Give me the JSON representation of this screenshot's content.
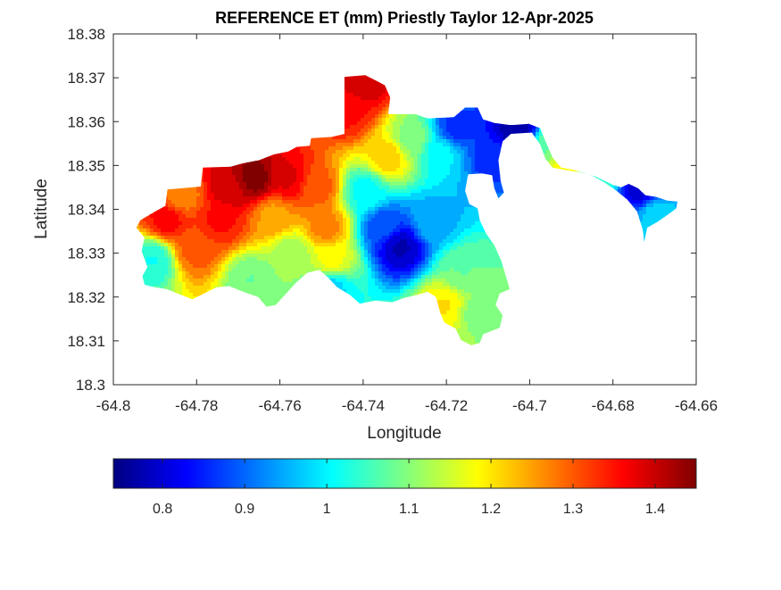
{
  "chart_data": {
    "type": "heatmap",
    "title": "REFERENCE ET (mm) Priestly Taylor 12-Apr-2025",
    "xlabel": "Longitude",
    "ylabel": "Latitude",
    "xlim": [
      -64.8,
      -64.66
    ],
    "ylim": [
      18.3,
      18.38
    ],
    "xticks": [
      -64.8,
      -64.78,
      -64.76,
      -64.74,
      -64.72,
      -64.7,
      -64.68,
      -64.66
    ],
    "xtick_labels": [
      "-64.8",
      "-64.78",
      "-64.76",
      "-64.74",
      "-64.72",
      "-64.7",
      "-64.68",
      "-64.66"
    ],
    "yticks": [
      18.3,
      18.31,
      18.32,
      18.33,
      18.34,
      18.35,
      18.36,
      18.37,
      18.38
    ],
    "ytick_labels": [
      "18.3",
      "18.31",
      "18.32",
      "18.33",
      "18.34",
      "18.35",
      "18.36",
      "18.37",
      "18.38"
    ],
    "grid": false,
    "colormap": "jet",
    "colorbar": {
      "placement": "bottom",
      "range": [
        0.74,
        1.45
      ],
      "ticks": [
        0.8,
        0.9,
        1.0,
        1.1,
        1.2,
        1.3,
        1.4
      ],
      "tick_labels": [
        "0.8",
        "0.9",
        "1",
        "1.1",
        "1.2",
        "1.3",
        "1.4"
      ]
    },
    "island_outline": [
      [
        -64.7935,
        18.3375
      ],
      [
        -64.7905,
        18.3392
      ],
      [
        -64.7875,
        18.3408
      ],
      [
        -64.787,
        18.3445
      ],
      [
        -64.7835,
        18.3448
      ],
      [
        -64.779,
        18.3452
      ],
      [
        -64.7785,
        18.3495
      ],
      [
        -64.7718,
        18.3497
      ],
      [
        -64.7688,
        18.3505
      ],
      [
        -64.765,
        18.3512
      ],
      [
        -64.7615,
        18.3525
      ],
      [
        -64.758,
        18.3532
      ],
      [
        -64.756,
        18.3542
      ],
      [
        -64.7528,
        18.3545
      ],
      [
        -64.7525,
        18.3562
      ],
      [
        -64.7475,
        18.3565
      ],
      [
        -64.7445,
        18.3572
      ],
      [
        -64.7445,
        18.3702
      ],
      [
        -64.7395,
        18.3706
      ],
      [
        -64.737,
        18.3694
      ],
      [
        -64.7348,
        18.3683
      ],
      [
        -64.7335,
        18.3655
      ],
      [
        -64.734,
        18.3617
      ],
      [
        -64.7275,
        18.3617
      ],
      [
        -64.7245,
        18.3607
      ],
      [
        -64.7182,
        18.361
      ],
      [
        -64.7155,
        18.3632
      ],
      [
        -64.7125,
        18.3632
      ],
      [
        -64.7112,
        18.3605
      ],
      [
        -64.7085,
        18.3597
      ],
      [
        -64.7045,
        18.3592
      ],
      [
        -64.7002,
        18.3595
      ],
      [
        -64.6975,
        18.3585
      ],
      [
        -64.6962,
        18.3555
      ],
      [
        -64.6945,
        18.3518
      ],
      [
        -64.6925,
        18.3495
      ],
      [
        -64.6895,
        18.349
      ],
      [
        -64.6868,
        18.3482
      ],
      [
        -64.6842,
        18.3475
      ],
      [
        -64.682,
        18.3465
      ],
      [
        -64.6798,
        18.3455
      ],
      [
        -64.678,
        18.345
      ],
      [
        -64.6762,
        18.3458
      ],
      [
        -64.674,
        18.3448
      ],
      [
        -64.6722,
        18.3432
      ],
      [
        -64.6695,
        18.3428
      ],
      [
        -64.667,
        18.342
      ],
      [
        -64.6645,
        18.3418
      ],
      [
        -64.6648,
        18.3402
      ],
      [
        -64.6668,
        18.3388
      ],
      [
        -64.6692,
        18.3372
      ],
      [
        -64.6718,
        18.3358
      ],
      [
        -64.6725,
        18.3325
      ],
      [
        -64.6728,
        18.3352
      ],
      [
        -64.6742,
        18.3395
      ],
      [
        -64.6765,
        18.3422
      ],
      [
        -64.6795,
        18.3445
      ],
      [
        -64.6822,
        18.3462
      ],
      [
        -64.6852,
        18.3478
      ],
      [
        -64.6882,
        18.3485
      ],
      [
        -64.6915,
        18.349
      ],
      [
        -64.6945,
        18.3495
      ],
      [
        -64.6962,
        18.3515
      ],
      [
        -64.6975,
        18.3548
      ],
      [
        -64.6995,
        18.3575
      ],
      [
        -64.7045,
        18.3572
      ],
      [
        -64.7065,
        18.3555
      ],
      [
        -64.7075,
        18.3512
      ],
      [
        -64.707,
        18.3465
      ],
      [
        -64.7062,
        18.3438
      ],
      [
        -64.7075,
        18.3425
      ],
      [
        -64.7085,
        18.3448
      ],
      [
        -64.709,
        18.3478
      ],
      [
        -64.7115,
        18.3482
      ],
      [
        -64.7148,
        18.348
      ],
      [
        -64.7155,
        18.3442
      ],
      [
        -64.7145,
        18.3412
      ],
      [
        -64.7125,
        18.3402
      ],
      [
        -64.712,
        18.3375
      ],
      [
        -64.7105,
        18.3345
      ],
      [
        -64.7085,
        18.3318
      ],
      [
        -64.7068,
        18.3282
      ],
      [
        -64.7048,
        18.3218
      ],
      [
        -64.7072,
        18.3208
      ],
      [
        -64.7082,
        18.3182
      ],
      [
        -64.7065,
        18.3158
      ],
      [
        -64.7072,
        18.313
      ],
      [
        -64.7112,
        18.3115
      ],
      [
        -64.712,
        18.3095
      ],
      [
        -64.714,
        18.309
      ],
      [
        -64.7165,
        18.3102
      ],
      [
        -64.7178,
        18.3128
      ],
      [
        -64.7205,
        18.3142
      ],
      [
        -64.7215,
        18.3165
      ],
      [
        -64.7225,
        18.32
      ],
      [
        -64.7245,
        18.3212
      ],
      [
        -64.727,
        18.3205
      ],
      [
        -64.7302,
        18.3198
      ],
      [
        -64.733,
        18.3188
      ],
      [
        -64.737,
        18.3192
      ],
      [
        -64.7408,
        18.3185
      ],
      [
        -64.7432,
        18.3205
      ],
      [
        -64.7462,
        18.3222
      ],
      [
        -64.7485,
        18.3245
      ],
      [
        -64.7505,
        18.3262
      ],
      [
        -64.7535,
        18.3255
      ],
      [
        -64.7562,
        18.3232
      ],
      [
        -64.7585,
        18.3208
      ],
      [
        -64.761,
        18.3182
      ],
      [
        -64.7632,
        18.3178
      ],
      [
        -64.7652,
        18.32
      ],
      [
        -64.7688,
        18.3212
      ],
      [
        -64.7722,
        18.3225
      ],
      [
        -64.7752,
        18.3222
      ],
      [
        -64.7782,
        18.3208
      ],
      [
        -64.781,
        18.3195
      ],
      [
        -64.7838,
        18.3205
      ],
      [
        -64.7872,
        18.3218
      ],
      [
        -64.79,
        18.3222
      ],
      [
        -64.7925,
        18.3228
      ],
      [
        -64.793,
        18.3248
      ],
      [
        -64.7918,
        18.3268
      ],
      [
        -64.7932,
        18.3305
      ],
      [
        -64.7925,
        18.3335
      ],
      [
        -64.7945,
        18.3358
      ]
    ],
    "value_sources": [
      {
        "x": -64.766,
        "y": 18.347,
        "value": 1.45
      },
      {
        "x": -64.772,
        "y": 18.345,
        "value": 1.4
      },
      {
        "x": -64.758,
        "y": 18.347,
        "value": 1.38
      },
      {
        "x": -64.7745,
        "y": 18.3375,
        "value": 1.35
      },
      {
        "x": -64.787,
        "y": 18.3375,
        "value": 1.36
      },
      {
        "x": -64.7805,
        "y": 18.331,
        "value": 1.3
      },
      {
        "x": -64.749,
        "y": 18.336,
        "value": 1.27
      },
      {
        "x": -64.7435,
        "y": 18.362,
        "value": 1.35
      },
      {
        "x": -64.7395,
        "y": 18.369,
        "value": 1.4
      },
      {
        "x": -64.7835,
        "y": 18.343,
        "value": 1.27
      },
      {
        "x": -64.734,
        "y": 18.352,
        "value": 1.22
      },
      {
        "x": -64.757,
        "y": 18.33,
        "value": 1.12
      },
      {
        "x": -64.7475,
        "y": 18.328,
        "value": 1.18
      },
      {
        "x": -64.7905,
        "y": 18.3285,
        "value": 1.02
      },
      {
        "x": -64.767,
        "y": 18.324,
        "value": 1.08
      },
      {
        "x": -64.7475,
        "y": 18.3225,
        "value": 0.98
      },
      {
        "x": -64.7395,
        "y": 18.344,
        "value": 1.01
      },
      {
        "x": -64.731,
        "y": 18.3315,
        "value": 0.78
      },
      {
        "x": -64.735,
        "y": 18.336,
        "value": 0.88
      },
      {
        "x": -64.7235,
        "y": 18.337,
        "value": 0.95
      },
      {
        "x": -64.7175,
        "y": 18.358,
        "value": 0.86
      },
      {
        "x": -64.721,
        "y": 18.353,
        "value": 1.0
      },
      {
        "x": -64.7285,
        "y": 18.356,
        "value": 1.1
      },
      {
        "x": -64.716,
        "y": 18.326,
        "value": 1.08
      },
      {
        "x": -64.7125,
        "y": 18.3165,
        "value": 1.1
      },
      {
        "x": -64.7205,
        "y": 18.318,
        "value": 1.2
      },
      {
        "x": -64.703,
        "y": 18.358,
        "value": 0.76
      },
      {
        "x": -64.7085,
        "y": 18.352,
        "value": 0.85
      },
      {
        "x": -64.695,
        "y": 18.3545,
        "value": 1.08
      },
      {
        "x": -64.692,
        "y": 18.3495,
        "value": 1.18
      },
      {
        "x": -64.684,
        "y": 18.3475,
        "value": 1.05
      },
      {
        "x": -64.673,
        "y": 18.3445,
        "value": 0.8
      },
      {
        "x": -64.6695,
        "y": 18.339,
        "value": 0.98
      },
      {
        "x": -64.751,
        "y": 18.345,
        "value": 1.3
      },
      {
        "x": -64.7615,
        "y": 18.3385,
        "value": 1.25
      }
    ]
  }
}
